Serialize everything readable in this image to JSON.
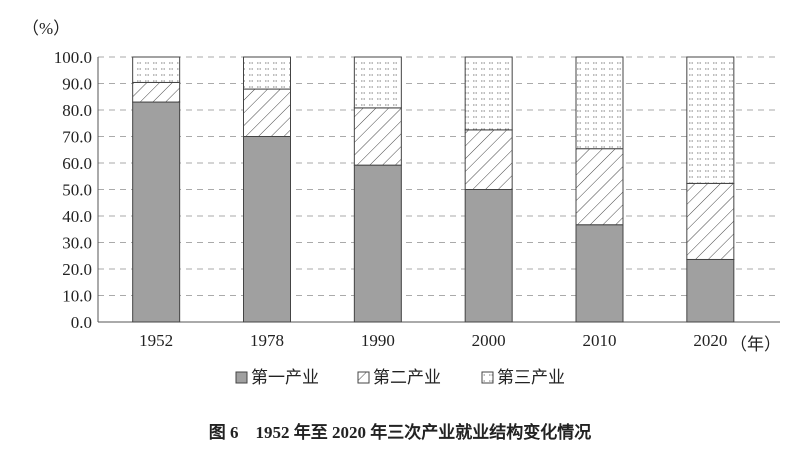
{
  "chart_data": {
    "type": "bar",
    "stacked": true,
    "title": "图 6　1952 年至 2020 年三次产业就业结构变化情况",
    "ylabel": "（%）",
    "xlabel": "（年）",
    "ylim": [
      0,
      100
    ],
    "yticks": [
      "0.0",
      "10.0",
      "20.0",
      "30.0",
      "40.0",
      "50.0",
      "60.0",
      "70.0",
      "80.0",
      "90.0",
      "100.0"
    ],
    "grid": true,
    "legend_position": "bottom",
    "categories": [
      "1952",
      "1978",
      "1990",
      "2000",
      "2010",
      "2020"
    ],
    "series": [
      {
        "name": "第一产业",
        "pattern": "solid-gray",
        "color": "#a0a0a0",
        "values": [
          83.0,
          70.0,
          59.2,
          50.0,
          36.7,
          23.6
        ]
      },
      {
        "name": "第二产业",
        "pattern": "diagonal-hatch",
        "values": [
          7.4,
          17.9,
          21.6,
          22.5,
          28.7,
          28.7
        ]
      },
      {
        "name": "第三产业",
        "pattern": "dashed-dots",
        "values": [
          9.6,
          12.1,
          19.2,
          27.5,
          34.6,
          47.7
        ]
      }
    ]
  }
}
